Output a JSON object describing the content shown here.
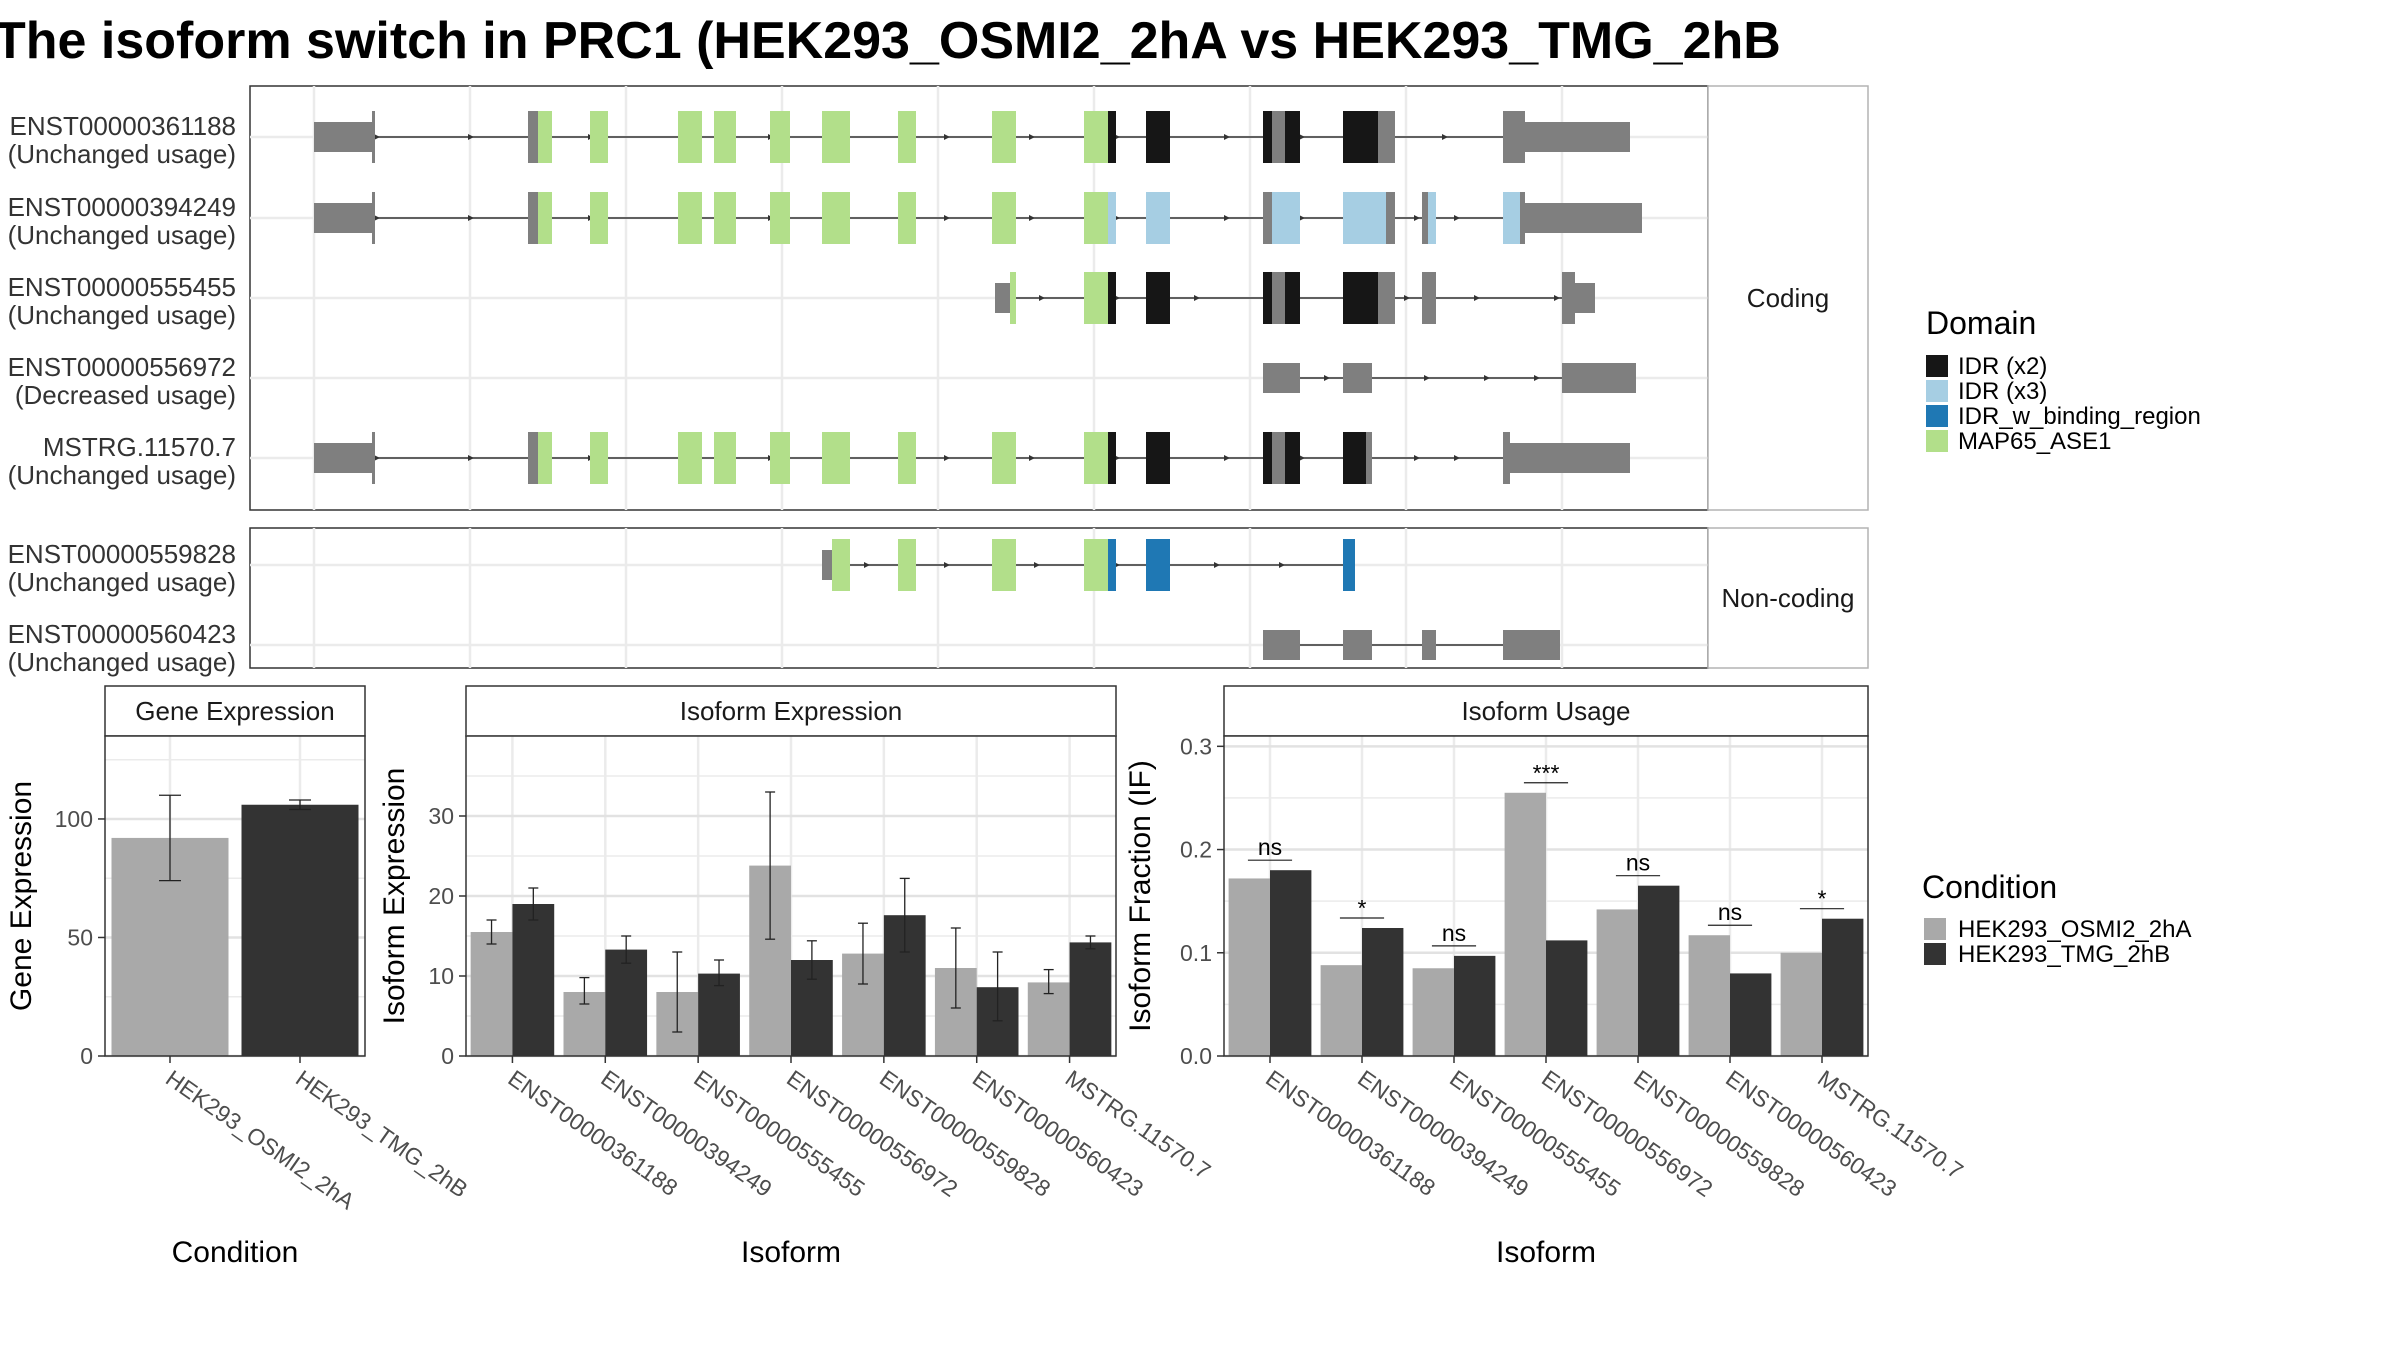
{
  "title": "The isoform switch in PRC1 (HEK293_OSMI2_2hA vs HEK293_TMG_2hB",
  "colors": {
    "utr": "#7f7f7f",
    "IDR (x2)": "#161616",
    "IDR (x3)": "#a6cee3",
    "IDR_w_binding_region": "#1f78b4",
    "MAP65_ASE1": "#b2df8a",
    "HEK293_OSMI2_2hA": "#a9a9a9",
    "HEK293_TMG_2hB": "#333333"
  },
  "structure": {
    "facets": [
      {
        "label": "Coding",
        "isoforms": [
          {
            "name": "ENST00000361188",
            "usage": "(Unchanged usage)"
          },
          {
            "name": "ENST00000394249",
            "usage": "(Unchanged usage)"
          },
          {
            "name": "ENST00000555455",
            "usage": "(Unchanged usage)"
          },
          {
            "name": "ENST00000556972",
            "usage": "(Decreased usage)"
          },
          {
            "name": "MSTRG.11570.7",
            "usage": "(Unchanged usage)"
          }
        ]
      },
      {
        "label": "Non-coding",
        "isoforms": [
          {
            "name": "ENST00000559828",
            "usage": "(Unchanged usage)"
          },
          {
            "name": "ENST00000560423",
            "usage": "(Unchanged usage)"
          }
        ]
      }
    ]
  },
  "legend_domain": {
    "title": "Domain",
    "items": [
      "IDR (x2)",
      "IDR (x3)",
      "IDR_w_binding_region",
      "MAP65_ASE1"
    ]
  },
  "legend_condition": {
    "title": "Condition",
    "items": [
      "HEK293_OSMI2_2hA",
      "HEK293_TMG_2hB"
    ]
  },
  "chart_data": [
    {
      "type": "bar",
      "title": "Gene Expression",
      "xlabel": "Condition",
      "ylabel": "Gene Expression",
      "categories": [
        "HEK293_OSMI2_2hA",
        "HEK293_TMG_2hB"
      ],
      "values": [
        92,
        106
      ],
      "error_low": [
        74,
        104
      ],
      "error_high": [
        110,
        108
      ],
      "ylim": [
        0,
        135
      ],
      "yticks": [
        0,
        50,
        100
      ],
      "grid": true
    },
    {
      "type": "bar",
      "title": "Isoform Expression",
      "xlabel": "Isoform",
      "ylabel": "Isoform Expression",
      "categories": [
        "ENST00000361188",
        "ENST00000394249",
        "ENST00000555455",
        "ENST00000556972",
        "ENST00000559828",
        "ENST00000560423",
        "MSTRG.11570.7"
      ],
      "series": [
        {
          "name": "HEK293_OSMI2_2hA",
          "values": [
            15.5,
            8.0,
            8.0,
            23.8,
            12.8,
            11.0,
            9.2
          ],
          "error_low": [
            14.0,
            6.5,
            3.0,
            14.6,
            9.0,
            6.0,
            7.8
          ],
          "error_high": [
            17.0,
            9.8,
            13.0,
            33.0,
            16.6,
            16.0,
            10.8
          ]
        },
        {
          "name": "HEK293_TMG_2hB",
          "values": [
            19.0,
            13.3,
            10.3,
            12.0,
            17.6,
            8.6,
            14.2
          ],
          "error_low": [
            17.0,
            11.6,
            8.8,
            9.6,
            13.0,
            4.4,
            13.4
          ],
          "error_high": [
            21.0,
            15.0,
            12.0,
            14.4,
            22.2,
            13.0,
            15.0
          ]
        }
      ],
      "ylim": [
        0,
        40
      ],
      "yticks": [
        0,
        10,
        20,
        30
      ],
      "grid": true
    },
    {
      "type": "bar",
      "title": "Isoform Usage",
      "xlabel": "Isoform",
      "ylabel": "Isoform Fraction (IF)",
      "categories": [
        "ENST00000361188",
        "ENST00000394249",
        "ENST00000555455",
        "ENST00000556972",
        "ENST00000559828",
        "ENST00000560423",
        "MSTRG.11570.7"
      ],
      "series": [
        {
          "name": "HEK293_OSMI2_2hA",
          "values": [
            0.172,
            0.088,
            0.085,
            0.255,
            0.142,
            0.117,
            0.1
          ]
        },
        {
          "name": "HEK293_TMG_2hB",
          "values": [
            0.18,
            0.124,
            0.097,
            0.112,
            0.165,
            0.08,
            0.133
          ]
        }
      ],
      "significance": [
        "ns",
        "*",
        "ns",
        "***",
        "ns",
        "ns",
        "*"
      ],
      "ylim": [
        0,
        0.31
      ],
      "yticks": [
        "0.0",
        "0.1",
        "0.2",
        "0.3"
      ],
      "grid": true
    }
  ]
}
